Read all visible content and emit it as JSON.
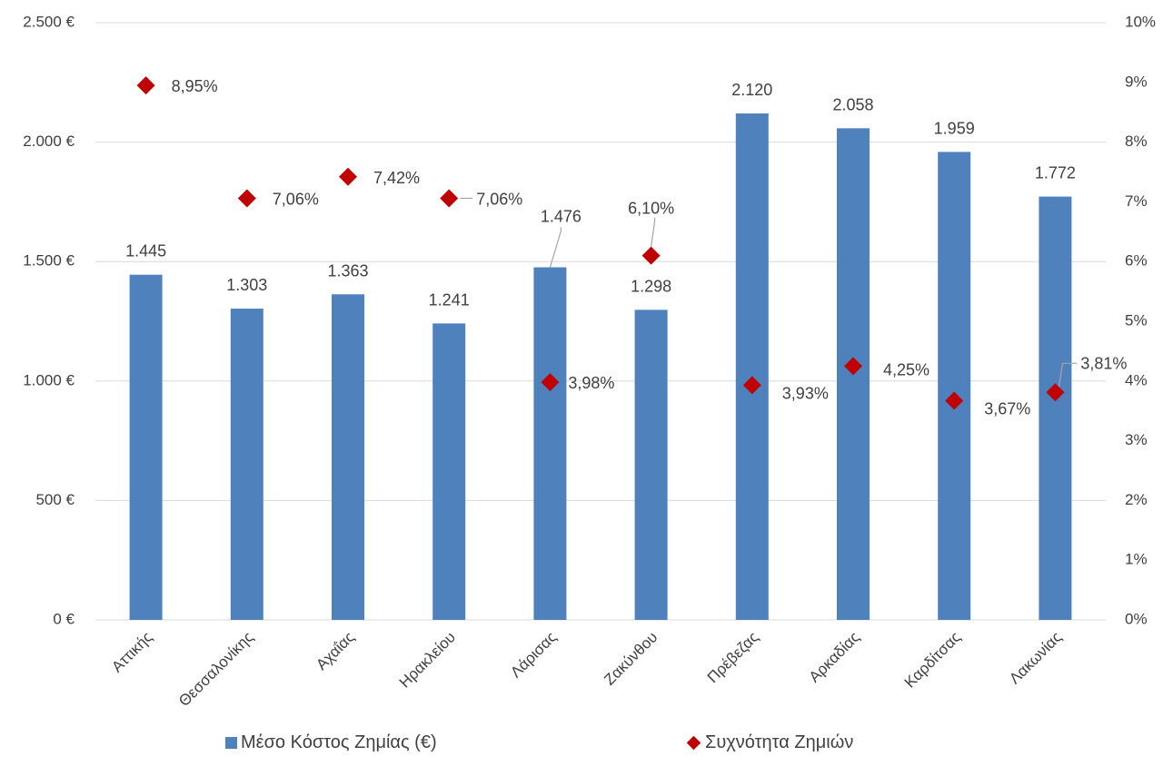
{
  "chart_data": {
    "type": "bar",
    "categories": [
      "Αττικής",
      "Θεσσαλονίκης",
      "Αχαΐας",
      "Ηρακλείου",
      "Λάρισας",
      "Ζακύνθου",
      "Πρέβεζας",
      "Αρκαδίας",
      "Καρδίτσας",
      "Λακωνίας"
    ],
    "series": [
      {
        "name": "Μέσο Κόστος Ζημίας (€)",
        "kind": "bar",
        "axis": "left",
        "color": "#4f81bd",
        "values": [
          1445,
          1303,
          1363,
          1241,
          1476,
          1298,
          2120,
          2058,
          1959,
          1772
        ],
        "labels": [
          "1.445",
          "1.303",
          "1.363",
          "1.241",
          "1.476",
          "1.298",
          "2.120",
          "2.058",
          "1.959",
          "1.772"
        ]
      },
      {
        "name": "Συχνότητα Ζημιών",
        "kind": "diamond-marker",
        "axis": "right",
        "color": "#c00000",
        "values": [
          8.95,
          7.06,
          7.42,
          7.06,
          3.98,
          6.1,
          3.93,
          4.25,
          3.67,
          3.81
        ],
        "labels": [
          "8,95%",
          "7,06%",
          "7,42%",
          "7,06%",
          "3,98%",
          "6,10%",
          "3,93%",
          "4,25%",
          "3,67%",
          "3,81%"
        ]
      }
    ],
    "y_left": {
      "ylim": [
        0,
        2500
      ],
      "ticks": [
        0,
        500,
        1000,
        1500,
        2000,
        2500
      ],
      "tick_labels": [
        "0 €",
        "500 €",
        "1.000 €",
        "1.500 €",
        "2.000 €",
        "2.500 €"
      ]
    },
    "y_right": {
      "ylim": [
        0,
        10
      ],
      "ticks": [
        0,
        1,
        2,
        3,
        4,
        5,
        6,
        7,
        8,
        9,
        10
      ],
      "tick_labels": [
        "0%",
        "1%",
        "2%",
        "3%",
        "4%",
        "5%",
        "6%",
        "7%",
        "8%",
        "9%",
        "10%"
      ]
    },
    "grid": true,
    "legend_position": "bottom",
    "gridline_color": "#d9d9d9"
  }
}
